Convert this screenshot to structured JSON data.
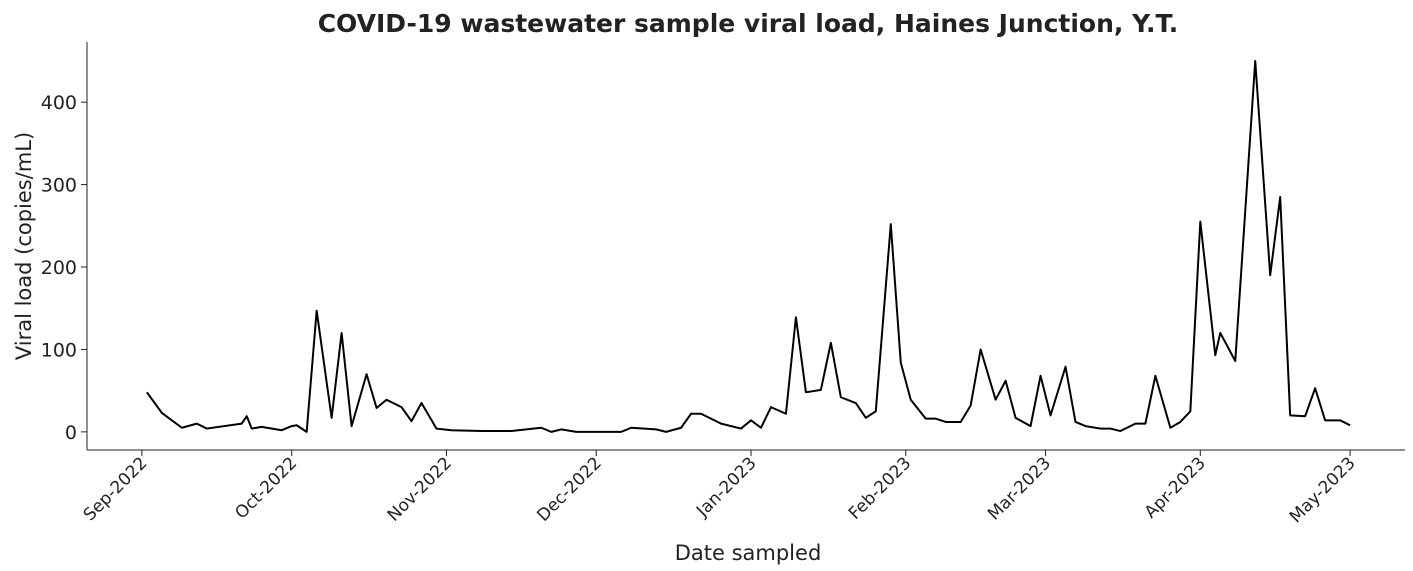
{
  "chart_data": {
    "type": "line",
    "title": "COVID-19 wastewater sample viral load, Haines Junction, Y.T.",
    "x_label": "Date sampled",
    "y_label": "Viral load (copies/mL)",
    "xlim": [
      "2022-08-21",
      "2023-05-12"
    ],
    "xticks": [
      {
        "value": "2022-09-01",
        "label": "Sep-2022"
      },
      {
        "value": "2022-10-01",
        "label": "Oct-2022"
      },
      {
        "value": "2022-11-01",
        "label": "Nov-2022"
      },
      {
        "value": "2022-12-01",
        "label": "Dec-2022"
      },
      {
        "value": "2023-01-01",
        "label": "Jan-2023"
      },
      {
        "value": "2023-02-01",
        "label": "Feb-2023"
      },
      {
        "value": "2023-03-01",
        "label": "Mar-2023"
      },
      {
        "value": "2023-04-01",
        "label": "Apr-2023"
      },
      {
        "value": "2023-05-01",
        "label": "May-2023"
      }
    ],
    "ylim": [
      -22,
      473
    ],
    "yticks": [
      0,
      100,
      200,
      300,
      400
    ],
    "grid": false,
    "series": [
      {
        "name": "Viral load",
        "color": "#000000",
        "x": [
          "2022-09-02",
          "2022-09-05",
          "2022-09-09",
          "2022-09-12",
          "2022-09-14",
          "2022-09-21",
          "2022-09-22",
          "2022-09-23",
          "2022-09-25",
          "2022-09-29",
          "2022-10-01",
          "2022-10-02",
          "2022-10-04",
          "2022-10-06",
          "2022-10-09",
          "2022-10-11",
          "2022-10-13",
          "2022-10-16",
          "2022-10-18",
          "2022-10-20",
          "2022-10-23",
          "2022-10-25",
          "2022-10-27",
          "2022-10-30",
          "2022-11-02",
          "2022-11-08",
          "2022-11-14",
          "2022-11-20",
          "2022-11-22",
          "2022-11-24",
          "2022-11-27",
          "2022-12-06",
          "2022-12-08",
          "2022-12-13",
          "2022-12-15",
          "2022-12-18",
          "2022-12-20",
          "2022-12-22",
          "2022-12-26",
          "2022-12-30",
          "2023-01-01",
          "2023-01-03",
          "2023-01-05",
          "2023-01-08",
          "2023-01-10",
          "2023-01-12",
          "2023-01-15",
          "2023-01-17",
          "2023-01-19",
          "2023-01-22",
          "2023-01-24",
          "2023-01-26",
          "2023-01-29",
          "2023-01-31",
          "2023-02-02",
          "2023-02-05",
          "2023-02-07",
          "2023-02-09",
          "2023-02-12",
          "2023-02-14",
          "2023-02-16",
          "2023-02-19",
          "2023-02-21",
          "2023-02-23",
          "2023-02-26",
          "2023-02-28",
          "2023-03-02",
          "2023-03-05",
          "2023-03-07",
          "2023-03-09",
          "2023-03-12",
          "2023-03-14",
          "2023-03-16",
          "2023-03-19",
          "2023-03-21",
          "2023-03-23",
          "2023-03-26",
          "2023-03-28",
          "2023-03-30",
          "2023-04-01",
          "2023-04-04",
          "2023-04-05",
          "2023-04-08",
          "2023-04-12",
          "2023-04-15",
          "2023-04-17",
          "2023-04-19",
          "2023-04-22",
          "2023-04-24",
          "2023-04-26",
          "2023-04-29",
          "2023-05-01"
        ],
        "values": [
          48,
          23,
          5,
          10,
          4,
          10,
          19,
          4,
          6,
          2,
          7,
          8,
          0,
          147,
          17,
          120,
          7,
          70,
          29,
          39,
          30,
          13,
          35,
          4,
          2,
          1,
          1,
          5,
          0,
          3,
          0,
          0,
          5,
          3,
          0,
          5,
          22,
          22,
          10,
          4,
          14,
          5,
          30,
          22,
          139,
          48,
          51,
          108,
          42,
          35,
          17,
          25,
          252,
          84,
          39,
          16,
          16,
          12,
          12,
          32,
          100,
          39,
          62,
          17,
          7,
          68,
          20,
          79,
          12,
          7,
          4,
          4,
          1,
          10,
          10,
          68,
          5,
          12,
          25,
          255,
          93,
          120,
          86,
          450,
          190,
          285,
          20,
          19,
          53,
          14,
          14,
          8
        ]
      }
    ]
  }
}
